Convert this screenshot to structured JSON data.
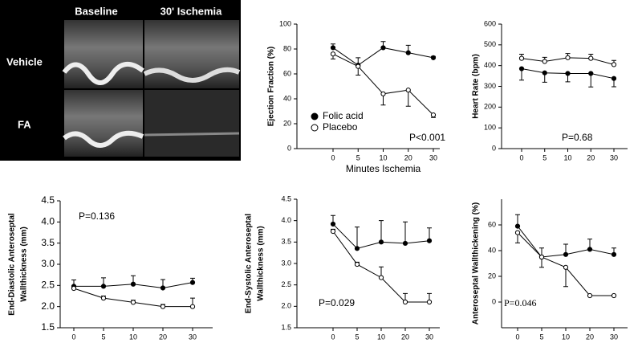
{
  "image_panel": {
    "columns": [
      "Baseline",
      "30' Ischemia"
    ],
    "rows": [
      "Vehicle",
      "FA"
    ]
  },
  "chart_data": [
    {
      "type": "line",
      "ylabel": [
        "Ejection Fraction (%)"
      ],
      "xlabel": "Minutes Ischemia",
      "categories": [
        "0",
        "5",
        "10",
        "20",
        "30"
      ],
      "ylim": [
        0,
        100
      ],
      "yticks": [
        0,
        20,
        40,
        60,
        80,
        100
      ],
      "legend": "lower left",
      "annotation": "P<0.001",
      "series": [
        {
          "name": "Folic acid",
          "color": "#000000",
          "marker_fill": "#000000",
          "error_direction": "up",
          "values": [
            81,
            67,
            81,
            77,
            73
          ],
          "errors": [
            3,
            6,
            5,
            6,
            1
          ]
        },
        {
          "name": "Placebo",
          "color": "#000000",
          "marker_fill": "#ffffff",
          "error_direction": "down",
          "values": [
            76,
            66,
            44,
            47,
            27
          ],
          "errors": [
            4,
            7,
            9,
            13,
            2
          ]
        }
      ]
    },
    {
      "type": "line",
      "ylabel": [
        "Heart Rate (bpm)"
      ],
      "categories": [
        "0",
        "5",
        "10",
        "20",
        "30"
      ],
      "ylim": [
        0,
        600
      ],
      "yticks": [
        0,
        100,
        200,
        300,
        400,
        500,
        600
      ],
      "annotation": "P=0.68",
      "series": [
        {
          "color": "#000000",
          "marker_fill": "#000000",
          "error_direction": "down",
          "values": [
            385,
            365,
            362,
            362,
            338
          ],
          "errors": [
            55,
            45,
            40,
            65,
            40
          ]
        },
        {
          "color": "#000000",
          "marker_fill": "#ffffff",
          "error_direction": "up",
          "values": [
            435,
            420,
            438,
            435,
            405
          ],
          "errors": [
            20,
            20,
            20,
            20,
            20
          ]
        }
      ]
    },
    {
      "type": "line",
      "ylabel": [
        "End-Diastolic Anteroseptal",
        "Wallthickness (mm)"
      ],
      "categories": [
        "0",
        "5",
        "10",
        "20",
        "30"
      ],
      "ylim": [
        1.5,
        4.5
      ],
      "yticks": [
        1.5,
        {
          "value": 2,
          "label": "2.0"
        },
        2.5,
        {
          "value": 3,
          "label": "3.0"
        },
        3.5,
        {
          "value": 4,
          "label": "4.0"
        },
        4.5
      ],
      "annotation": "P=0.136",
      "series": [
        {
          "color": "#000000",
          "marker_fill": "#000000",
          "error_direction": "up",
          "values": [
            2.48,
            2.48,
            2.53,
            2.44,
            2.57
          ],
          "errors": [
            0.15,
            0.2,
            0.2,
            0.2,
            0.1
          ]
        },
        {
          "color": "#000000",
          "marker_fill": "#ffffff",
          "error_direction": "up",
          "values": [
            2.43,
            2.2,
            2.1,
            2.0,
            2.0
          ],
          "errors": [
            0.05,
            0.05,
            0.05,
            0.05,
            0.2
          ]
        }
      ]
    },
    {
      "type": "line",
      "ylabel": [
        "End-Systolic Anteroseptal",
        "Wallthickness (mm)"
      ],
      "categories": [
        "0",
        "5",
        "10",
        "20",
        "30"
      ],
      "ylim": [
        1.5,
        4.5
      ],
      "yticks": [
        1.5,
        {
          "value": 2,
          "label": "2.0"
        },
        2.5,
        {
          "value": 3,
          "label": "3.0"
        },
        3.5,
        {
          "value": 4,
          "label": "4.0"
        },
        4.5
      ],
      "annotation": "P=0.029",
      "series": [
        {
          "color": "#000000",
          "marker_fill": "#000000",
          "error_direction": "up",
          "values": [
            3.92,
            3.35,
            3.5,
            3.47,
            3.53
          ],
          "errors": [
            0.2,
            0.5,
            0.5,
            0.5,
            0.3
          ]
        },
        {
          "color": "#000000",
          "marker_fill": "#ffffff",
          "error_direction": "up",
          "values": [
            3.75,
            2.98,
            2.67,
            2.1,
            2.1
          ],
          "errors": [
            0.05,
            0.05,
            0.25,
            0.2,
            0.2
          ]
        }
      ]
    },
    {
      "type": "line",
      "ylabel": [
        "Anteroseptal Wallthickening (%)"
      ],
      "categories": [
        "0",
        "5",
        "10",
        "20",
        "30"
      ],
      "ylim": [
        -20,
        80
      ],
      "yticks": [
        0,
        20,
        40,
        60
      ],
      "annotation": "P=0.046",
      "series": [
        {
          "color": "#000000",
          "marker_fill": "#000000",
          "error_direction": "up",
          "values": [
            59,
            35,
            37,
            41,
            37
          ],
          "errors": [
            9,
            7,
            8,
            8,
            5
          ]
        },
        {
          "color": "#000000",
          "marker_fill": "#ffffff",
          "error_direction": "down",
          "values": [
            54,
            35,
            27,
            5,
            5
          ],
          "errors": [
            8,
            8,
            15,
            0,
            0
          ]
        }
      ]
    }
  ]
}
